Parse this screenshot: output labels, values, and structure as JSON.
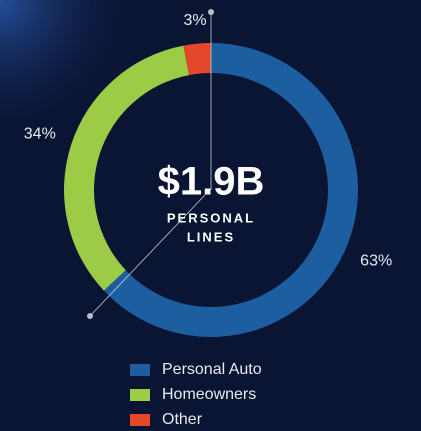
{
  "chart_data": {
    "type": "donut",
    "center_value": "$1.9B",
    "center_label": [
      "PERSONAL",
      "LINES"
    ],
    "categories": [
      "Personal Auto",
      "Homeowners",
      "Other"
    ],
    "values": [
      63,
      34,
      3
    ],
    "value_labels": [
      "63%",
      "34%",
      "3%"
    ],
    "colors": [
      "#1c5e9f",
      "#9ccb46",
      "#e5472a"
    ],
    "legend": "bottom"
  }
}
